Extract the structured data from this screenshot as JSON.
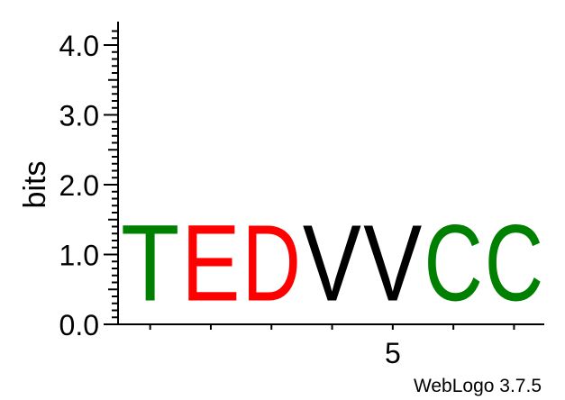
{
  "chart_data": {
    "type": "sequence-logo",
    "ylabel": "bits",
    "ylim": [
      0,
      4.3
    ],
    "y_ticks": [
      "0.0",
      "1.0",
      "2.0",
      "3.0",
      "4.0"
    ],
    "y_tick_values": [
      0,
      1,
      2,
      3,
      4
    ],
    "x_tick_labels": [
      {
        "position": 5,
        "label": "5"
      }
    ],
    "positions": [
      {
        "position": 1,
        "letter": "T",
        "bits": 1.75,
        "color": "#008000"
      },
      {
        "position": 2,
        "letter": "E",
        "bits": 1.75,
        "color": "#ff0000"
      },
      {
        "position": 3,
        "letter": "D",
        "bits": 1.75,
        "color": "#ff0000"
      },
      {
        "position": 4,
        "letter": "V",
        "bits": 1.75,
        "color": "#000000"
      },
      {
        "position": 5,
        "letter": "V",
        "bits": 1.75,
        "color": "#000000"
      },
      {
        "position": 6,
        "letter": "C",
        "bits": 1.75,
        "color": "#008000"
      },
      {
        "position": 7,
        "letter": "C",
        "bits": 1.75,
        "color": "#008000"
      }
    ],
    "footer": "WebLogo 3.7.5"
  }
}
